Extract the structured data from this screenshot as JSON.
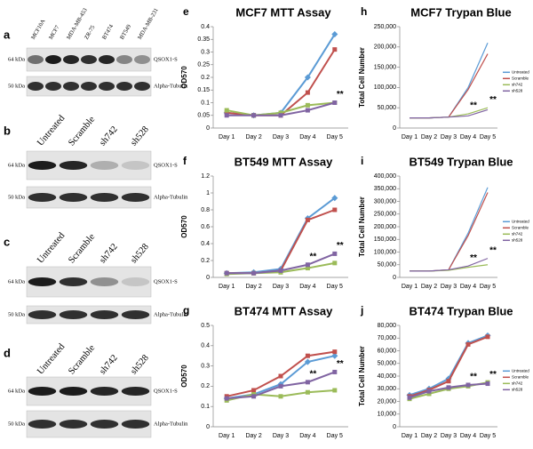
{
  "blots": [
    {
      "panel": "a",
      "lanes": [
        "MCF10A",
        "MCF7",
        "MDA-MB-453",
        "ZR-75",
        "BT474",
        "BT549",
        "MDA-MB-231"
      ],
      "bands": [
        {
          "mw": "64 kDa",
          "label": "QSOX1-S"
        },
        {
          "mw": "50 kDa",
          "label": "Alpha-Tubulin"
        }
      ]
    },
    {
      "panel": "b",
      "lanes": [
        "Untreated",
        "Scramble",
        "sh742",
        "sh528"
      ],
      "bands": [
        {
          "mw": "64 kDa",
          "label": "QSOX1-S"
        },
        {
          "mw": "50 kDa",
          "label": "Alpha-Tubulin"
        }
      ]
    },
    {
      "panel": "c",
      "lanes": [
        "Untreated",
        "Scramble",
        "sh742",
        "sh528"
      ],
      "bands": [
        {
          "mw": "64 kDa",
          "label": "QSOX1-S"
        },
        {
          "mw": "50 kDa",
          "label": "Alpha-Tubulin"
        }
      ]
    },
    {
      "panel": "d",
      "lanes": [
        "Untreated",
        "Scramble",
        "sh742",
        "sh528"
      ],
      "bands": [
        {
          "mw": "64 kDa",
          "label": "QSOX1-S"
        },
        {
          "mw": "50 kDa",
          "label": "Alpha-Tubulin"
        }
      ]
    }
  ],
  "chart_data": [
    {
      "type": "line",
      "panel": "e",
      "title": "MCF7 MTT Assay",
      "y_label": "OD570",
      "categories": [
        "Day 1",
        "Day 2",
        "Day 3",
        "Day 4",
        "Day 5"
      ],
      "ylim": [
        0,
        0.4
      ],
      "yticks": [
        0,
        0.05,
        0.1,
        0.15,
        0.2,
        0.25,
        0.3,
        0.35,
        0.4
      ],
      "markers": true,
      "annotations": [
        "**"
      ],
      "series": [
        {
          "name": "Untreated",
          "color": "#5b9bd5",
          "values": [
            0.06,
            0.05,
            0.06,
            0.2,
            0.37
          ]
        },
        {
          "name": "Scramble",
          "color": "#c0504d",
          "values": [
            0.06,
            0.05,
            0.05,
            0.14,
            0.31
          ]
        },
        {
          "name": "sh742",
          "color": "#9bbb59",
          "values": [
            0.07,
            0.05,
            0.06,
            0.09,
            0.1
          ]
        },
        {
          "name": "sh528",
          "color": "#8064a2",
          "values": [
            0.05,
            0.05,
            0.05,
            0.07,
            0.1
          ]
        }
      ]
    },
    {
      "type": "line",
      "panel": "f",
      "title": "BT549 MTT Assay",
      "y_label": "OD570",
      "categories": [
        "Day 1",
        "Day 2",
        "Day 3",
        "Day 4",
        "Day 5"
      ],
      "ylim": [
        0,
        1.2
      ],
      "yticks": [
        0,
        0.2,
        0.4,
        0.6,
        0.8,
        1,
        1.2
      ],
      "markers": true,
      "annotations": [
        "**",
        "**"
      ],
      "series": [
        {
          "name": "Untreated",
          "color": "#5b9bd5",
          "values": [
            0.05,
            0.06,
            0.1,
            0.7,
            0.94
          ]
        },
        {
          "name": "Scramble",
          "color": "#c0504d",
          "values": [
            0.05,
            0.05,
            0.08,
            0.68,
            0.8
          ]
        },
        {
          "name": "sh742",
          "color": "#9bbb59",
          "values": [
            0.04,
            0.05,
            0.06,
            0.11,
            0.17
          ]
        },
        {
          "name": "sh528",
          "color": "#8064a2",
          "values": [
            0.05,
            0.05,
            0.08,
            0.15,
            0.28
          ]
        }
      ]
    },
    {
      "type": "line",
      "panel": "g",
      "title": "BT474 MTT Assay",
      "y_label": "OD570",
      "categories": [
        "Day 1",
        "Day 2",
        "Day 3",
        "Day 4",
        "Day 5"
      ],
      "ylim": [
        0,
        0.5
      ],
      "yticks": [
        0,
        0.1,
        0.2,
        0.3,
        0.4,
        0.5
      ],
      "markers": true,
      "annotations": [
        "**",
        "**"
      ],
      "series": [
        {
          "name": "Untreated",
          "color": "#5b9bd5",
          "values": [
            0.14,
            0.16,
            0.21,
            0.32,
            0.35
          ]
        },
        {
          "name": "Scramble",
          "color": "#c0504d",
          "values": [
            0.15,
            0.18,
            0.25,
            0.35,
            0.37
          ]
        },
        {
          "name": "sh742",
          "color": "#9bbb59",
          "values": [
            0.13,
            0.16,
            0.15,
            0.17,
            0.18
          ]
        },
        {
          "name": "sh528",
          "color": "#8064a2",
          "values": [
            0.14,
            0.15,
            0.2,
            0.22,
            0.27
          ]
        }
      ]
    },
    {
      "type": "line",
      "panel": "h",
      "title": "MCF7 Trypan Blue",
      "y_label": "Total Cell Number",
      "categories": [
        "Day 1",
        "Day 2",
        "Day 3",
        "Day 4",
        "Day 5"
      ],
      "ylim": [
        0,
        250000
      ],
      "yticks": [
        0,
        {
          "value": 50000,
          "label": "50,000"
        },
        {
          "value": 100000,
          "label": "100,000"
        },
        {
          "value": 150000,
          "label": "150,000"
        },
        {
          "value": 200000,
          "label": "200,000"
        },
        {
          "value": 250000,
          "label": "250,000"
        }
      ],
      "markers": false,
      "legend": "right",
      "annotations": [
        "**",
        "**"
      ],
      "series": [
        {
          "name": "Untreated",
          "color": "#5b9bd5",
          "values": [
            25000,
            25000,
            27000,
            100000,
            210000
          ]
        },
        {
          "name": "Scramble",
          "color": "#c0504d",
          "values": [
            25000,
            25000,
            27000,
            95000,
            183000
          ]
        },
        {
          "name": "sh742",
          "color": "#9bbb59",
          "values": [
            25000,
            25000,
            27000,
            35000,
            50000
          ]
        },
        {
          "name": "sh528",
          "color": "#8064a2",
          "values": [
            25000,
            25000,
            27000,
            30000,
            45000
          ]
        }
      ]
    },
    {
      "type": "line",
      "panel": "i",
      "title": "BT549 Trypan Blue",
      "y_label": "Total Cell Number",
      "categories": [
        "Day 1",
        "Day 2",
        "Day 3",
        "Day 4",
        "Day 5"
      ],
      "ylim": [
        0,
        400000
      ],
      "yticks": [
        0,
        {
          "value": 50000,
          "label": "50,000"
        },
        {
          "value": 100000,
          "label": "100,000"
        },
        {
          "value": 150000,
          "label": "150,000"
        },
        {
          "value": 200000,
          "label": "200,000"
        },
        {
          "value": 250000,
          "label": "250,000"
        },
        {
          "value": 300000,
          "label": "300,000"
        },
        {
          "value": 350000,
          "label": "350,000"
        },
        {
          "value": 400000,
          "label": "400,000"
        }
      ],
      "markers": false,
      "legend": "right",
      "annotations": [
        "**",
        "**"
      ],
      "series": [
        {
          "name": "Untreated",
          "color": "#5b9bd5",
          "values": [
            25000,
            25000,
            30000,
            175000,
            355000
          ]
        },
        {
          "name": "Scramble",
          "color": "#c0504d",
          "values": [
            25000,
            25000,
            30000,
            165000,
            335000
          ]
        },
        {
          "name": "sh742",
          "color": "#9bbb59",
          "values": [
            25000,
            25000,
            28000,
            40000,
            50000
          ]
        },
        {
          "name": "sh528",
          "color": "#8064a2",
          "values": [
            25000,
            25000,
            30000,
            45000,
            75000
          ]
        }
      ]
    },
    {
      "type": "line",
      "panel": "j",
      "title": "BT474 Trypan Blue",
      "y_label": "Total Cell Number",
      "categories": [
        "Day 1",
        "Day 2",
        "Day 3",
        "Day 4",
        "Day 5"
      ],
      "ylim": [
        0,
        80000
      ],
      "yticks": [
        0,
        {
          "value": 10000,
          "label": "10,000"
        },
        {
          "value": 20000,
          "label": "20,000"
        },
        {
          "value": 30000,
          "label": "30,000"
        },
        {
          "value": 40000,
          "label": "40,000"
        },
        {
          "value": 50000,
          "label": "50,000"
        },
        {
          "value": 60000,
          "label": "60,000"
        },
        {
          "value": 70000,
          "label": "70,000"
        },
        {
          "value": 80000,
          "label": "80,000"
        }
      ],
      "markers": true,
      "legend": "right",
      "annotations": [
        "**",
        "**"
      ],
      "series": [
        {
          "name": "Untreated",
          "color": "#5b9bd5",
          "values": [
            25000,
            30000,
            38000,
            66000,
            72000
          ]
        },
        {
          "name": "Scramble",
          "color": "#c0504d",
          "values": [
            24000,
            29000,
            36000,
            65000,
            71000
          ]
        },
        {
          "name": "sh742",
          "color": "#9bbb59",
          "values": [
            22000,
            26000,
            30000,
            32000,
            35000
          ]
        },
        {
          "name": "sh528",
          "color": "#8064a2",
          "values": [
            23000,
            28000,
            31000,
            33000,
            34000
          ]
        }
      ]
    }
  ]
}
